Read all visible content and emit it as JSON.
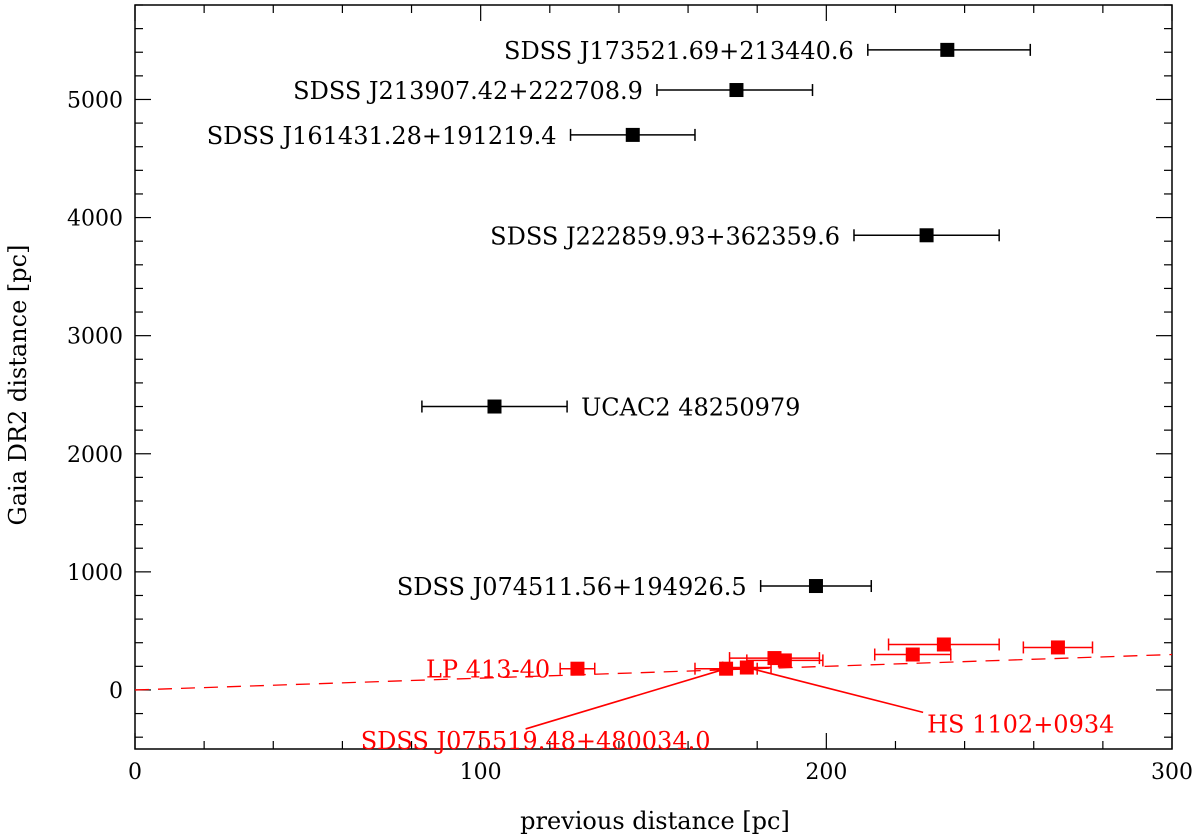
{
  "chart_data": {
    "type": "scatter",
    "xlabel": "previous distance [pc]",
    "ylabel": "Gaia DR2 distance [pc]",
    "xlim": [
      0,
      300
    ],
    "ylim": [
      -500,
      5800
    ],
    "x_ticks": [
      0,
      100,
      200,
      300
    ],
    "y_ticks": [
      0,
      1000,
      2000,
      3000,
      4000,
      5000
    ],
    "grid": false,
    "legend": "none",
    "colors": {
      "outlier": "#000000",
      "consistent": "#ff0000"
    },
    "reference_line": {
      "style": "dashed",
      "color": "#ff0000",
      "from": [
        0,
        0
      ],
      "to": [
        300,
        300
      ]
    },
    "series": [
      {
        "color": "#000000",
        "points": [
          {
            "x": 235,
            "x_err": [
              212,
              259
            ],
            "y": 5420,
            "label": "SDSS J173521.69+213440.6"
          },
          {
            "x": 174,
            "x_err": [
              151,
              196
            ],
            "y": 5080,
            "label": "SDSS J213907.42+222708.9"
          },
          {
            "x": 144,
            "x_err": [
              126,
              162
            ],
            "y": 4700,
            "label": "SDSS J161431.28+191219.4"
          },
          {
            "x": 229,
            "x_err": [
              208,
              250
            ],
            "y": 3850,
            "label": "SDSS J222859.93+362359.6"
          },
          {
            "x": 104,
            "x_err": [
              83,
              125
            ],
            "y": 2400,
            "label": "UCAC2 48250979"
          },
          {
            "x": 197,
            "x_err": [
              181,
              213
            ],
            "y": 880,
            "label": "SDSS J074511.56+194926.5"
          }
        ]
      },
      {
        "color": "#ff0000",
        "points": [
          {
            "x": 128,
            "x_err": [
              123,
              133
            ],
            "y": 180,
            "label": "LP 413-40"
          },
          {
            "x": 171,
            "x_err": [
              162,
              180
            ],
            "y": 180
          },
          {
            "x": 177,
            "x_err": [
              170,
              184
            ],
            "y": 190
          },
          {
            "x": 185,
            "x_err": [
              172,
              198
            ],
            "y": 270
          },
          {
            "x": 188,
            "x_err": [
              177,
              199
            ],
            "y": 250
          },
          {
            "x": 225,
            "x_err": [
              214,
              236
            ],
            "y": 300
          },
          {
            "x": 234,
            "x_err": [
              218,
              250
            ],
            "y": 385
          },
          {
            "x": 267,
            "x_err": [
              257,
              277
            ],
            "y": 360
          }
        ]
      }
    ],
    "callouts": [
      {
        "label": "SDSS J075519.48+480034.0",
        "target": [
          171,
          180
        ],
        "text_anchor": [
          113,
          -330
        ]
      },
      {
        "label": "HS 1102+0934",
        "target": [
          177,
          190
        ],
        "text_anchor": [
          228,
          -190
        ]
      }
    ]
  }
}
